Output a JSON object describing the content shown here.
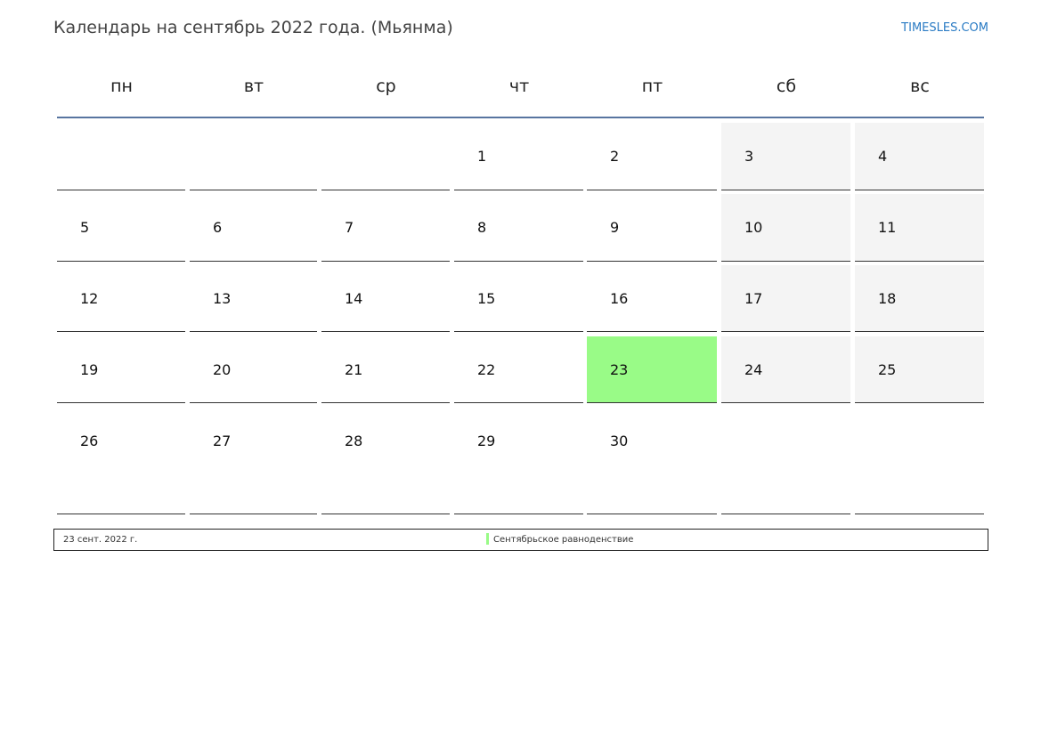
{
  "title": "Календарь на сентябрь 2022 года. (Мьянма)",
  "site": "TIMESLES.COM",
  "weekdays": [
    "пн",
    "вт",
    "ср",
    "чт",
    "пт",
    "сб",
    "вс"
  ],
  "weeks": [
    [
      "",
      "",
      "",
      "1",
      "2",
      "3",
      "4"
    ],
    [
      "5",
      "6",
      "7",
      "8",
      "9",
      "10",
      "11"
    ],
    [
      "12",
      "13",
      "14",
      "15",
      "16",
      "17",
      "18"
    ],
    [
      "19",
      "20",
      "21",
      "22",
      "23",
      "24",
      "25"
    ],
    [
      "26",
      "27",
      "28",
      "29",
      "30",
      "",
      ""
    ]
  ],
  "highlighted_day": "23",
  "colors": {
    "holiday": "#99fb87",
    "weekend": "#f4f4f4",
    "header_line": "#5875a0",
    "link": "#2a7bc4"
  },
  "legend": {
    "date": "23 сент. 2022 г.",
    "name": "Сентябрьское равноденствие"
  }
}
